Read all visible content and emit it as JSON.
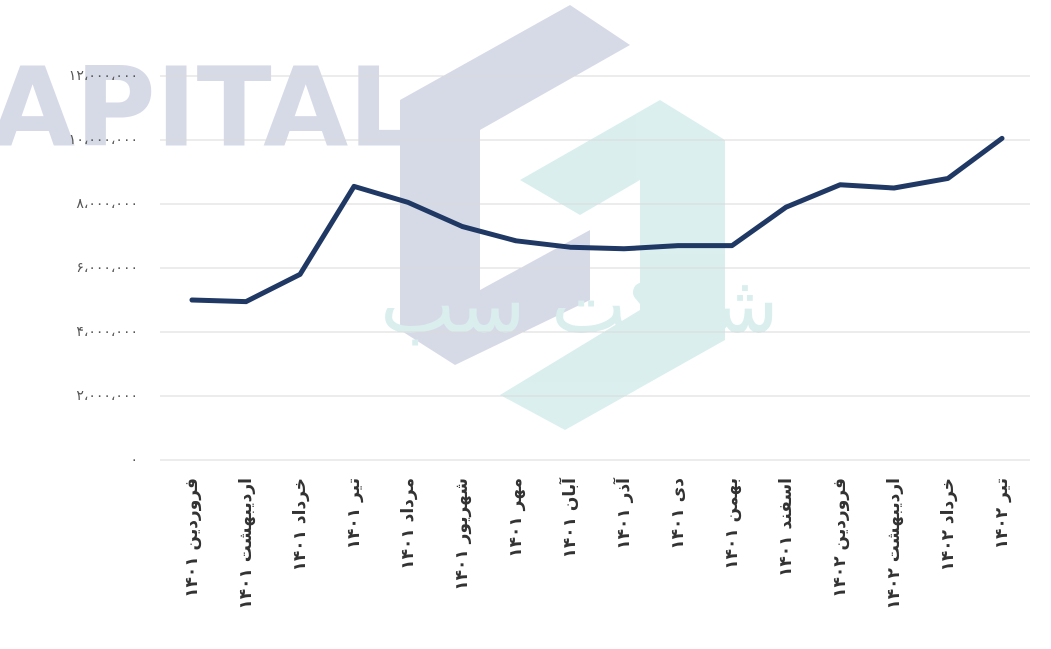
{
  "watermark": [
    "APITAL",
    "شرکت سب"
  ],
  "chart_data": {
    "type": "line",
    "categories": [
      "فروردین ۱۴۰۱",
      "اردیبهشت ۱۴۰۱",
      "خرداد ۱۴۰۱",
      "تیر ۱۴۰۱",
      "مرداد ۱۴۰۱",
      "شهریور ۱۴۰۱",
      "مهر ۱۴۰۱",
      "آبان ۱۴۰۱",
      "آذر ۱۴۰۱",
      "دی ۱۴۰۱",
      "بهمن ۱۴۰۱",
      "اسفند ۱۴۰۱",
      "فروردین ۱۴۰۲",
      "اردیبهشت ۱۴۰۲",
      "خرداد ۱۴۰۲",
      "تیر ۱۴۰۲"
    ],
    "values": [
      5000000,
      4950000,
      5800000,
      8550000,
      8050000,
      7300000,
      6850000,
      6650000,
      6600000,
      6700000,
      6700000,
      7900000,
      8600000,
      8500000,
      8800000,
      10050000
    ],
    "color": "#1f3864",
    "ylim": [
      0,
      12000000
    ],
    "yticks": [
      {
        "value": 0,
        "label": "۰"
      },
      {
        "value": 2000000,
        "label": "۲،۰۰۰،۰۰۰"
      },
      {
        "value": 4000000,
        "label": "۴،۰۰۰،۰۰۰"
      },
      {
        "value": 6000000,
        "label": "۶،۰۰۰،۰۰۰"
      },
      {
        "value": 8000000,
        "label": "۸،۰۰۰،۰۰۰"
      },
      {
        "value": 10000000,
        "label": "۱۰،۰۰۰،۰۰۰"
      },
      {
        "value": 12000000,
        "label": "۱۲،۰۰۰،۰۰۰"
      }
    ],
    "grid": true
  }
}
